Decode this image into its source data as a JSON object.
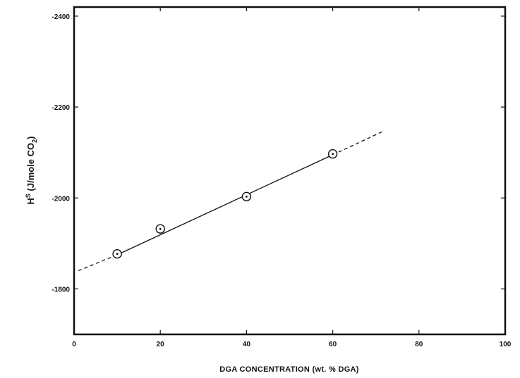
{
  "chart_data": {
    "type": "scatter",
    "title": "",
    "xlabel": "DGA CONCENTRATION (wt. % DGA)",
    "ylabel": {
      "main": "H",
      "superscript": "S",
      "unit_open": " (J/mole CO",
      "subscript": "2",
      "unit_close": ")"
    },
    "xlim": [
      0,
      100
    ],
    "ylim": [
      -1700,
      -2420
    ],
    "x_ticks": [
      0,
      20,
      40,
      60,
      80,
      100
    ],
    "x_tick_labels": [
      "0",
      "20",
      "40",
      "60",
      "80",
      "100"
    ],
    "y_ticks": [
      -1800,
      -2000,
      -2200,
      -2400
    ],
    "y_tick_labels": [
      "-1800",
      "-2000",
      "-2200",
      "-2400"
    ],
    "grid": false,
    "series": [
      {
        "marker": "circle-dot",
        "x": [
          10,
          20,
          40,
          60
        ],
        "y": [
          -1877,
          -1932,
          -2003,
          -2097
        ]
      }
    ],
    "fit_line": {
      "solid": {
        "x": [
          10,
          60
        ],
        "y": [
          -1875,
          -2095
        ]
      },
      "dashed_left": {
        "x": [
          1,
          10
        ],
        "y": [
          -1840,
          -1875
        ]
      },
      "dashed_right": {
        "x": [
          60,
          72
        ],
        "y": [
          -2095,
          -2148
        ]
      }
    }
  }
}
